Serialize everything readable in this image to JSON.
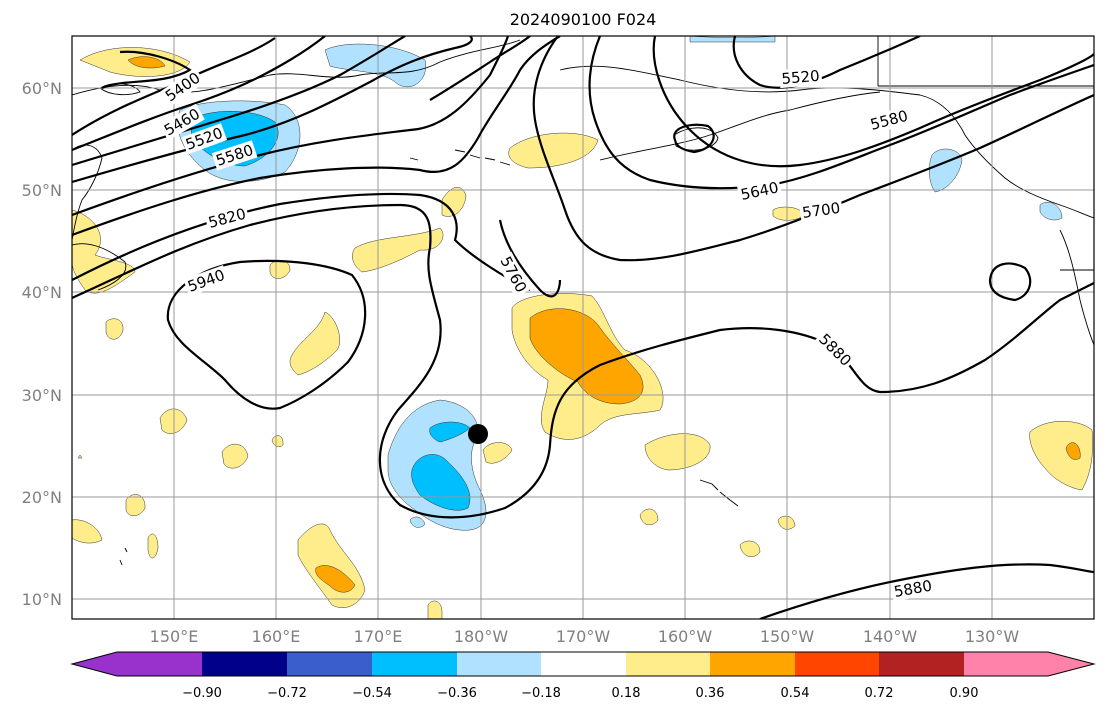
{
  "map": {
    "title": "2024090100 F024",
    "lat_ticks": [
      "10°N",
      "20°N",
      "30°N",
      "40°N",
      "50°N",
      "60°N"
    ],
    "lon_ticks": [
      "150°E",
      "160°E",
      "170°E",
      "180°W",
      "170°W",
      "160°W",
      "150°W",
      "140°W",
      "130°W"
    ],
    "contour_labels": [
      "5400",
      "5460",
      "5520",
      "5580",
      "5820",
      "5940",
      "5760",
      "5520",
      "5580",
      "5640",
      "5700",
      "5880",
      "5880"
    ],
    "storm_marker": "filled black dot near 26°N 180°W",
    "colors": {
      "neg_090": "#9932cc",
      "neg_072": "#00008b",
      "neg_054": "#3a5fcd",
      "neg_036": "#00bfff",
      "neg_018": "#b0e2ff",
      "neutral": "#ffffff",
      "pos_018": "#ffec8b",
      "pos_036": "#ffa500",
      "pos_054": "#ff4500",
      "pos_072": "#b22222",
      "pos_090": "#ff82ab"
    }
  },
  "colorbar": {
    "ticks": [
      "−0.90",
      "−0.72",
      "−0.54",
      "−0.36",
      "−0.18",
      "0.18",
      "0.36",
      "0.54",
      "0.72",
      "0.90"
    ]
  }
}
